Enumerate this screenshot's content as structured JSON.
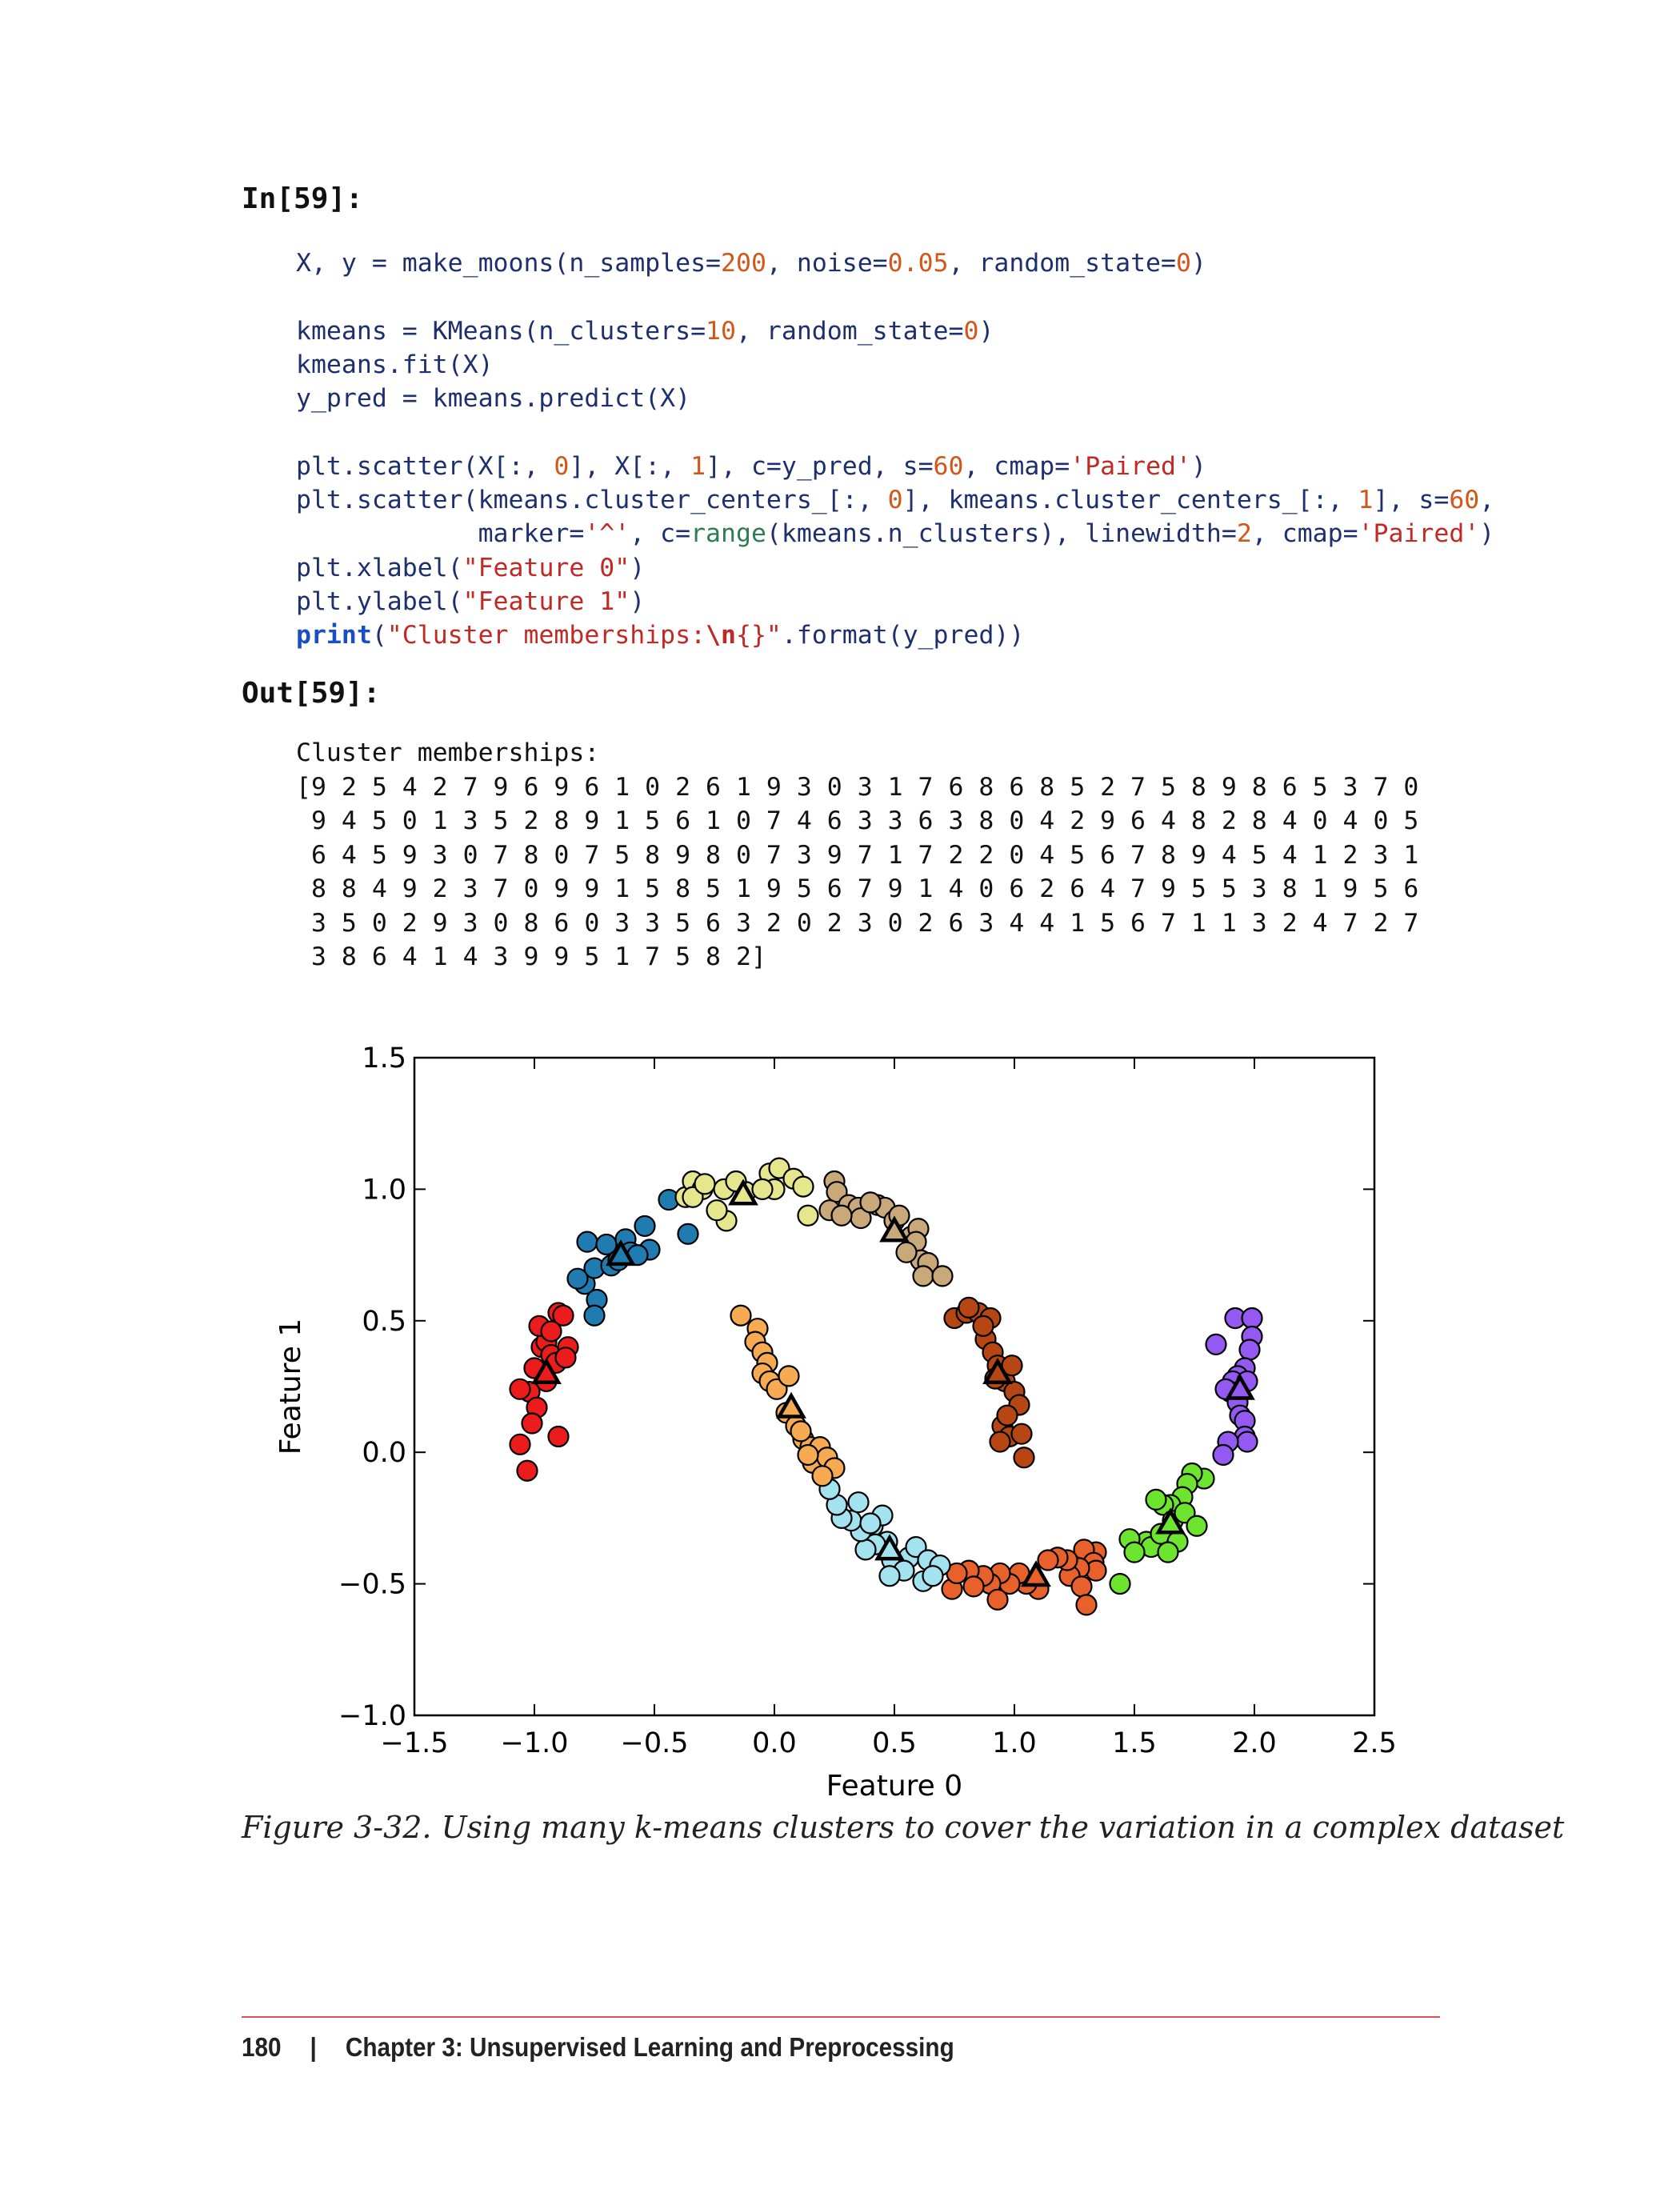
{
  "input_label": "In[59]:",
  "code_lines": [
    [
      {
        "t": "X, y = make_moons(n_samples=",
        "c": ""
      },
      {
        "t": "200",
        "c": "n"
      },
      {
        "t": ", noise=",
        "c": ""
      },
      {
        "t": "0.05",
        "c": "n"
      },
      {
        "t": ", random_state=",
        "c": ""
      },
      {
        "t": "0",
        "c": "n"
      },
      {
        "t": ")",
        "c": ""
      }
    ],
    [],
    [
      {
        "t": "kmeans = KMeans(n_clusters=",
        "c": ""
      },
      {
        "t": "10",
        "c": "n"
      },
      {
        "t": ", random_state=",
        "c": ""
      },
      {
        "t": "0",
        "c": "n"
      },
      {
        "t": ")",
        "c": ""
      }
    ],
    [
      {
        "t": "kmeans.fit(X)",
        "c": ""
      }
    ],
    [
      {
        "t": "y_pred = kmeans.predict(X)",
        "c": ""
      }
    ],
    [],
    [
      {
        "t": "plt.scatter(X[:, ",
        "c": ""
      },
      {
        "t": "0",
        "c": "n"
      },
      {
        "t": "], X[:, ",
        "c": ""
      },
      {
        "t": "1",
        "c": "n"
      },
      {
        "t": "], c=y_pred, s=",
        "c": ""
      },
      {
        "t": "60",
        "c": "n"
      },
      {
        "t": ", cmap=",
        "c": ""
      },
      {
        "t": "'Paired'",
        "c": "s"
      },
      {
        "t": ")",
        "c": ""
      }
    ],
    [
      {
        "t": "plt.scatter(kmeans.cluster_centers_[:, ",
        "c": ""
      },
      {
        "t": "0",
        "c": "n"
      },
      {
        "t": "], kmeans.cluster_centers_[:, ",
        "c": ""
      },
      {
        "t": "1",
        "c": "n"
      },
      {
        "t": "], s=",
        "c": ""
      },
      {
        "t": "60",
        "c": "n"
      },
      {
        "t": ",",
        "c": ""
      }
    ],
    [
      {
        "t": "            marker=",
        "c": ""
      },
      {
        "t": "'^'",
        "c": "s"
      },
      {
        "t": ", c=",
        "c": ""
      },
      {
        "t": "range",
        "c": "g"
      },
      {
        "t": "(kmeans.n_clusters), linewidth=",
        "c": ""
      },
      {
        "t": "2",
        "c": "n"
      },
      {
        "t": ", cmap=",
        "c": ""
      },
      {
        "t": "'Paired'",
        "c": "s"
      },
      {
        "t": ")",
        "c": ""
      }
    ],
    [
      {
        "t": "plt.xlabel(",
        "c": ""
      },
      {
        "t": "\"Feature 0\"",
        "c": "s"
      },
      {
        "t": ")",
        "c": ""
      }
    ],
    [
      {
        "t": "plt.ylabel(",
        "c": ""
      },
      {
        "t": "\"Feature 1\"",
        "c": "s"
      },
      {
        "t": ")",
        "c": ""
      }
    ],
    [
      {
        "t": "print",
        "c": "k"
      },
      {
        "t": "(",
        "c": ""
      },
      {
        "t": "\"Cluster memberships:",
        "c": "s"
      },
      {
        "t": "\\n",
        "c": "e"
      },
      {
        "t": "{}\"",
        "c": "s"
      },
      {
        "t": ".format(y_pred))",
        "c": ""
      }
    ]
  ],
  "output_label": "Out[59]:",
  "output_lines": [
    "Cluster memberships:",
    "[9 2 5 4 2 7 9 6 9 6 1 0 2 6 1 9 3 0 3 1 7 6 8 6 8 5 2 7 5 8 9 8 6 5 3 7 0",
    " 9 4 5 0 1 3 5 2 8 9 1 5 6 1 0 7 4 6 3 3 6 3 8 0 4 2 9 6 4 8 2 8 4 0 4 0 5",
    " 6 4 5 9 3 0 7 8 0 7 5 8 9 8 0 7 3 9 7 1 7 2 2 0 4 5 6 7 8 9 4 5 4 1 2 3 1",
    " 8 8 4 9 2 3 7 0 9 9 1 5 8 5 1 9 5 6 7 9 1 4 0 6 2 6 4 7 9 5 5 3 8 1 9 5 6",
    " 3 5 0 2 9 3 0 8 6 0 3 3 5 6 3 2 0 2 3 0 2 6 3 4 4 1 5 6 7 1 1 3 2 4 7 2 7",
    " 3 8 6 4 1 4 3 9 9 5 1 7 5 8 2]"
  ],
  "chart_data": {
    "type": "scatter",
    "xlabel": "Feature 0",
    "ylabel": "Feature 1",
    "xlim": [
      -1.5,
      2.5
    ],
    "ylim": [
      -1.0,
      1.5
    ],
    "xticks": [
      "−1.5",
      "−1.0",
      "−0.5",
      "0.0",
      "0.5",
      "1.0",
      "1.5",
      "2.0",
      "2.5"
    ],
    "yticks": [
      "−1.0",
      "−0.5",
      "0.0",
      "0.5",
      "1.0",
      "1.5"
    ],
    "colors": [
      "#1f7bb0",
      "#a3e2ef",
      "#6de52f",
      "#f6ab52",
      "#e8602a",
      "#ec1c1c",
      "#c9a87a",
      "#b64714",
      "#9459f0",
      "#e6e68c"
    ],
    "points": [
      [
        -1.02,
        0.23
      ],
      [
        -0.97,
        0.4
      ],
      [
        -0.9,
        0.53
      ],
      [
        -0.88,
        0.52
      ],
      [
        -0.95,
        0.42
      ],
      [
        -0.93,
        0.37
      ],
      [
        -1.0,
        0.32
      ],
      [
        -0.91,
        0.34
      ],
      [
        -0.86,
        0.4
      ],
      [
        -0.98,
        0.48
      ],
      [
        -1.06,
        0.24
      ],
      [
        -0.99,
        0.17
      ],
      [
        -1.01,
        0.11
      ],
      [
        -1.06,
        0.03
      ],
      [
        -1.03,
        -0.07
      ],
      [
        -0.9,
        0.06
      ],
      [
        -0.95,
        0.27
      ],
      [
        -0.87,
        0.36
      ],
      [
        -1.0,
        0.32
      ],
      [
        -0.93,
        0.46
      ],
      [
        -0.79,
        0.64
      ],
      [
        -0.75,
        0.7
      ],
      [
        -0.78,
        0.8
      ],
      [
        -0.7,
        0.79
      ],
      [
        -0.62,
        0.81
      ],
      [
        -0.54,
        0.86
      ],
      [
        -0.44,
        0.96
      ],
      [
        -0.52,
        0.77
      ],
      [
        -0.74,
        0.58
      ],
      [
        -0.75,
        0.52
      ],
      [
        -0.68,
        0.71
      ],
      [
        -0.6,
        0.76
      ],
      [
        -0.65,
        0.73
      ],
      [
        -0.36,
        0.83
      ],
      [
        -0.82,
        0.66
      ],
      [
        -0.57,
        0.75
      ],
      [
        -0.37,
        0.97
      ],
      [
        -0.34,
        1.03
      ],
      [
        -0.3,
        1.0
      ],
      [
        -0.21,
        1.0
      ],
      [
        -0.12,
        0.99
      ],
      [
        -0.02,
        1.06
      ],
      [
        0.02,
        1.08
      ],
      [
        0.08,
        1.04
      ],
      [
        0.12,
        1.01
      ],
      [
        0.0,
        1.0
      ],
      [
        0.14,
        0.9
      ],
      [
        -0.2,
        0.88
      ],
      [
        -0.24,
        0.92
      ],
      [
        -0.05,
        1.0
      ],
      [
        -0.34,
        0.97
      ],
      [
        -0.29,
        1.02
      ],
      [
        -0.16,
        1.03
      ],
      [
        0.25,
        1.03
      ],
      [
        0.26,
        0.99
      ],
      [
        0.31,
        0.94
      ],
      [
        0.35,
        0.93
      ],
      [
        0.36,
        0.89
      ],
      [
        0.43,
        0.94
      ],
      [
        0.46,
        0.93
      ],
      [
        0.5,
        0.88
      ],
      [
        0.57,
        0.82
      ],
      [
        0.6,
        0.85
      ],
      [
        0.59,
        0.8
      ],
      [
        0.61,
        0.73
      ],
      [
        0.64,
        0.72
      ],
      [
        0.62,
        0.67
      ],
      [
        0.7,
        0.67
      ],
      [
        0.23,
        0.92
      ],
      [
        0.28,
        0.9
      ],
      [
        0.4,
        0.95
      ],
      [
        0.52,
        0.9
      ],
      [
        0.55,
        0.76
      ],
      [
        0.75,
        0.51
      ],
      [
        0.8,
        0.53
      ],
      [
        0.85,
        0.53
      ],
      [
        0.9,
        0.51
      ],
      [
        0.88,
        0.43
      ],
      [
        0.91,
        0.38
      ],
      [
        0.93,
        0.33
      ],
      [
        0.96,
        0.27
      ],
      [
        0.99,
        0.33
      ],
      [
        1.0,
        0.23
      ],
      [
        1.02,
        0.18
      ],
      [
        0.95,
        0.1
      ],
      [
        0.98,
        0.06
      ],
      [
        1.03,
        0.07
      ],
      [
        0.94,
        0.04
      ],
      [
        1.04,
        -0.02
      ],
      [
        0.81,
        0.55
      ],
      [
        0.87,
        0.48
      ],
      [
        0.97,
        0.14
      ],
      [
        0.92,
        0.28
      ],
      [
        1.92,
        0.51
      ],
      [
        1.99,
        0.51
      ],
      [
        1.99,
        0.44
      ],
      [
        1.98,
        0.39
      ],
      [
        1.96,
        0.32
      ],
      [
        1.93,
        0.29
      ],
      [
        1.91,
        0.27
      ],
      [
        1.97,
        0.27
      ],
      [
        1.9,
        0.23
      ],
      [
        1.93,
        0.19
      ],
      [
        1.94,
        0.14
      ],
      [
        1.96,
        0.12
      ],
      [
        1.96,
        0.06
      ],
      [
        1.97,
        0.04
      ],
      [
        1.89,
        0.04
      ],
      [
        1.87,
        -0.01
      ],
      [
        1.84,
        0.41
      ],
      [
        1.88,
        0.24
      ],
      [
        1.79,
        -0.1
      ],
      [
        1.74,
        -0.08
      ],
      [
        1.72,
        -0.12
      ],
      [
        1.7,
        -0.17
      ],
      [
        1.65,
        -0.2
      ],
      [
        1.62,
        -0.2
      ],
      [
        1.59,
        -0.18
      ],
      [
        1.55,
        -0.34
      ],
      [
        1.57,
        -0.36
      ],
      [
        1.61,
        -0.31
      ],
      [
        1.66,
        -0.26
      ],
      [
        1.68,
        -0.34
      ],
      [
        1.64,
        -0.38
      ],
      [
        1.48,
        -0.33
      ],
      [
        1.5,
        -0.38
      ],
      [
        1.44,
        -0.5
      ],
      [
        1.71,
        -0.23
      ],
      [
        1.76,
        -0.28
      ],
      [
        1.34,
        -0.38
      ],
      [
        1.29,
        -0.37
      ],
      [
        1.33,
        -0.42
      ],
      [
        1.34,
        -0.45
      ],
      [
        1.27,
        -0.44
      ],
      [
        1.23,
        -0.47
      ],
      [
        1.28,
        -0.51
      ],
      [
        1.22,
        -0.41
      ],
      [
        1.18,
        -0.4
      ],
      [
        1.14,
        -0.41
      ],
      [
        1.3,
        -0.58
      ],
      [
        1.1,
        -0.52
      ],
      [
        1.05,
        -0.5
      ],
      [
        1.02,
        -0.46
      ],
      [
        0.98,
        -0.5
      ],
      [
        0.94,
        -0.46
      ],
      [
        0.9,
        -0.5
      ],
      [
        0.87,
        -0.47
      ],
      [
        0.81,
        -0.45
      ],
      [
        0.83,
        -0.51
      ],
      [
        0.74,
        -0.52
      ],
      [
        0.76,
        -0.46
      ],
      [
        0.93,
        -0.56
      ],
      [
        0.41,
        -0.28
      ],
      [
        0.45,
        -0.24
      ],
      [
        0.47,
        -0.34
      ],
      [
        0.42,
        -0.35
      ],
      [
        0.38,
        -0.37
      ],
      [
        0.36,
        -0.3
      ],
      [
        0.32,
        -0.26
      ],
      [
        0.28,
        -0.25
      ],
      [
        0.26,
        -0.2
      ],
      [
        0.23,
        -0.14
      ],
      [
        0.35,
        -0.19
      ],
      [
        0.4,
        -0.27
      ],
      [
        0.49,
        -0.41
      ],
      [
        0.56,
        -0.4
      ],
      [
        0.59,
        -0.36
      ],
      [
        0.64,
        -0.41
      ],
      [
        0.69,
        -0.43
      ],
      [
        0.62,
        -0.49
      ],
      [
        0.54,
        -0.45
      ],
      [
        0.48,
        -0.47
      ],
      [
        0.66,
        -0.47
      ],
      [
        -0.14,
        0.52
      ],
      [
        -0.07,
        0.47
      ],
      [
        -0.08,
        0.42
      ],
      [
        -0.05,
        0.38
      ],
      [
        -0.03,
        0.34
      ],
      [
        -0.05,
        0.3
      ],
      [
        -0.02,
        0.27
      ],
      [
        0.01,
        0.24
      ],
      [
        0.06,
        0.29
      ],
      [
        0.05,
        0.15
      ],
      [
        0.09,
        0.1
      ],
      [
        0.12,
        0.05
      ],
      [
        0.15,
        0.02
      ],
      [
        0.19,
        0.02
      ],
      [
        0.16,
        -0.04
      ],
      [
        0.22,
        -0.02
      ],
      [
        0.25,
        -0.06
      ],
      [
        0.2,
        -0.09
      ],
      [
        0.14,
        -0.01
      ],
      [
        0.11,
        0.08
      ]
    ],
    "point_clusters": [
      5,
      5,
      5,
      5,
      5,
      5,
      5,
      5,
      5,
      5,
      5,
      5,
      5,
      5,
      5,
      5,
      5,
      5,
      5,
      5,
      0,
      0,
      0,
      0,
      0,
      0,
      0,
      0,
      0,
      0,
      0,
      0,
      0,
      0,
      0,
      0,
      9,
      9,
      9,
      9,
      9,
      9,
      9,
      9,
      9,
      9,
      9,
      9,
      9,
      9,
      9,
      9,
      9,
      6,
      6,
      6,
      6,
      6,
      6,
      6,
      6,
      6,
      6,
      6,
      6,
      6,
      6,
      6,
      6,
      6,
      6,
      6,
      6,
      7,
      7,
      7,
      7,
      7,
      7,
      7,
      7,
      7,
      7,
      7,
      7,
      7,
      7,
      7,
      7,
      7,
      7,
      7,
      7,
      8,
      8,
      8,
      8,
      8,
      8,
      8,
      8,
      8,
      8,
      8,
      8,
      8,
      8,
      8,
      8,
      8,
      8,
      2,
      2,
      2,
      2,
      2,
      2,
      2,
      2,
      2,
      2,
      2,
      2,
      2,
      2,
      2,
      2,
      2,
      2,
      4,
      4,
      4,
      4,
      4,
      4,
      4,
      4,
      4,
      4,
      4,
      4,
      4,
      4,
      4,
      4,
      4,
      4,
      4,
      4,
      4,
      4,
      4,
      1,
      1,
      1,
      1,
      1,
      1,
      1,
      1,
      1,
      1,
      1,
      1,
      1,
      1,
      1,
      1,
      1,
      1,
      1,
      1,
      1,
      3,
      3,
      3,
      3,
      3,
      3,
      3,
      3,
      3,
      3,
      3,
      3,
      3,
      3,
      3,
      3,
      3,
      3,
      3,
      3
    ],
    "centers": [
      [
        -0.64,
        0.75,
        0
      ],
      [
        0.48,
        -0.37,
        1
      ],
      [
        1.65,
        -0.27,
        2
      ],
      [
        0.07,
        0.17,
        3
      ],
      [
        1.09,
        -0.47,
        4
      ],
      [
        -0.95,
        0.3,
        5
      ],
      [
        0.5,
        0.84,
        6
      ],
      [
        0.93,
        0.3,
        7
      ],
      [
        1.94,
        0.24,
        8
      ],
      [
        -0.13,
        0.98,
        9
      ]
    ]
  },
  "caption": "Figure 3-32. Using many k-means clusters to cover the variation in a complex dataset",
  "footer": {
    "page_number": "180",
    "separator": "|",
    "chapter": "Chapter 3: Unsupervised Learning and Preprocessing"
  }
}
